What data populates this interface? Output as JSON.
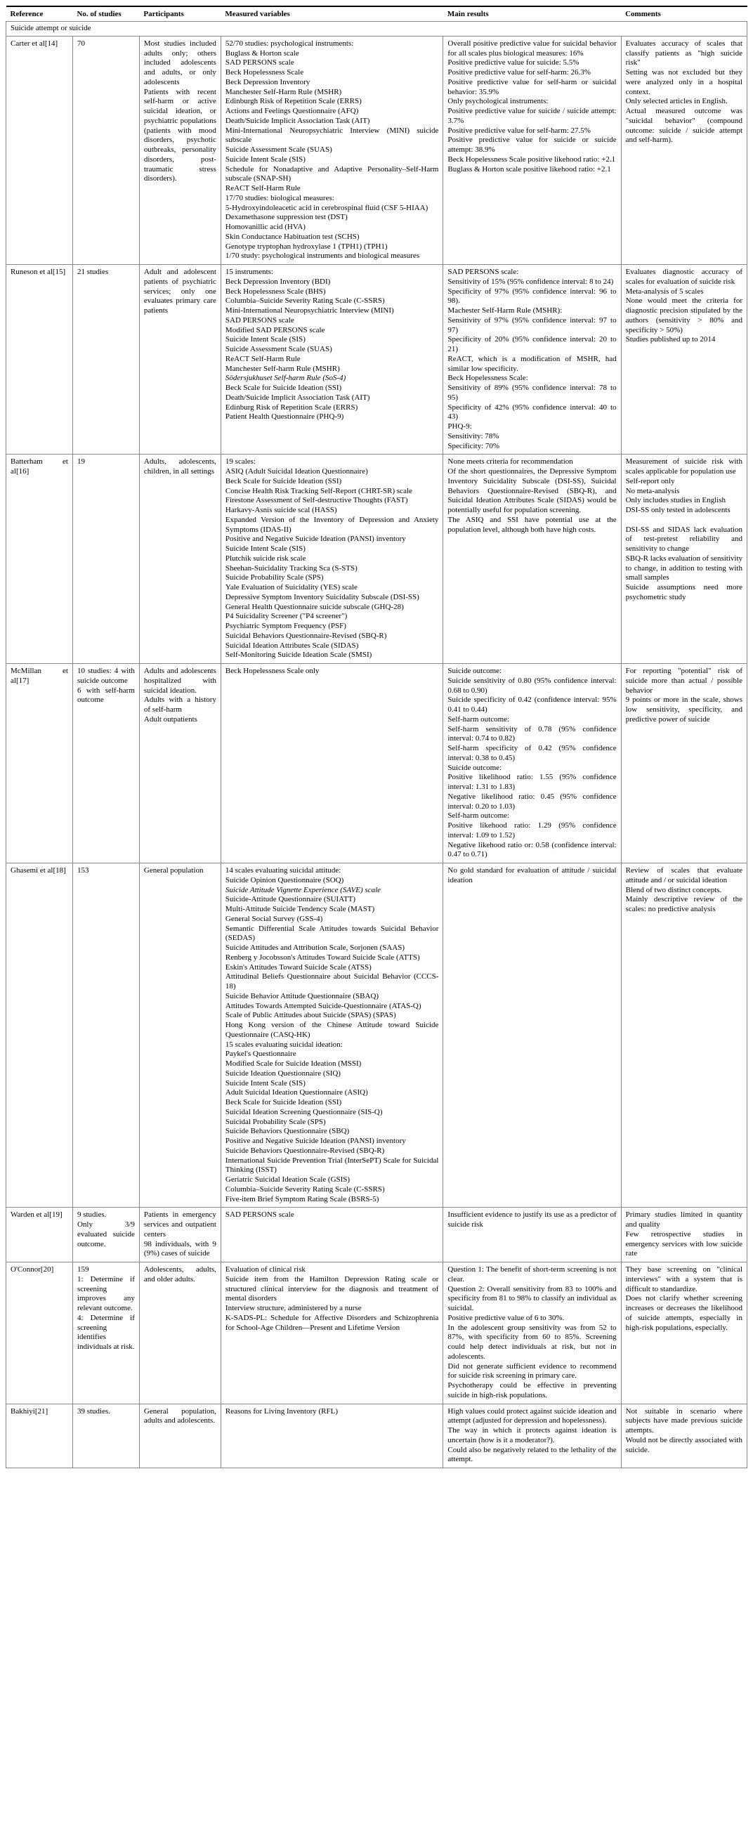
{
  "headers": {
    "reference": "Reference",
    "num_studies": "No. of studies",
    "participants": "Participants",
    "measured": "Measured variables",
    "results": "Main results",
    "comments": "Comments"
  },
  "section_title": "Suicide attempt or suicide",
  "rows": [
    {
      "reference": "Carter et al[14]",
      "num_studies": "70",
      "participants": "Most studies included adults only; others included adolescents and adults, or only adolescents\nPatients with recent self-harm or active suicidal ideation, or psychiatric populations (patients with mood disorders, psychotic outbreaks, personality disorders, post-traumatic stress disorders).",
      "measured": "52/70 studies: psychological instruments:\nBuglass & Horton scale\nSAD PERSONS scale\nBeck Hopelessness Scale\nBeck Depression Inventory\nManchester Self-Harm Rule (MSHR)\nEdinburgh Risk of Repetition Scale (ERRS)\nActions and Feelings Questionnaire (AFQ)\nDeath/Suicide Implicit Association Task (AIT)\nMini-International Neuropsychiatric Interview (MINI) suicide subscale\nSuicide Assessment Scale (SUAS)\nSuicide Intent Scale (SIS)\nSchedule for Nonadaptive and Adaptive Personality–Self-Harm subscale (SNAP-SH)\nReACT Self-Harm Rule\n17/70 studies: biological measures:\n5-Hydroxyindoleacetic acid in cerebrospinal fluid (CSF 5-HIAA)\nDexamethasone suppression test (DST)\nHomovanillic acid (HVA)\nSkin Conductance Habituation test (SCHS)\nGenotype tryptophan hydroxylase 1 (TPH1) (TPH1)\n1/70 study: psychological instruments and biological measures",
      "results": "Overall positive predictive value for suicidal behavior for all scales plus biological measures: 16%\nPositive predictive value for suicide: 5.5%\nPositive predictive value for self-harm: 26.3%\nPositive predictive value for self-harm or suicidal behavior: 35.9%\nOnly psychological instruments:\nPositive predictive value for suicide / suicide attempt: 3.7%\nPositive predictive value for self-harm: 27.5%\nPositive predictive value for suicide or suicide attempt: 38.9%\nBeck Hopelessness Scale positive likehood ratio: +2.1\nBuglass & Horton scale positive likehood ratio: +2.1",
      "comments": "Evaluates accuracy of scales that classify patients as \"high suicide risk\"\nSetting was not excluded but they were analyzed only in a hospital context.\nOnly selected articles in English.\nActual measured outcome was \"suicidal behavior\" (compound outcome: suicide / suicide attempt and self-harm)."
    },
    {
      "reference": "Runeson et al[15]",
      "num_studies": "21 studies",
      "participants": "Adult and adolescent patients of psychiatric services; only one evaluates primary care patients",
      "measured": "15 instruments:\nBeck Depression Inventory (BDI)\nBeck Hopelessness Scale (BHS)\nColumbia–Suicide Severity Rating Scale (C-SSRS)\nMini-International Neuropsychiatric Interview (MINI)\nSAD PERSONS scale\nModified SAD PERSONS scale\nSuicide Intent Scale (SIS)\nSuicide Assessment Scale (SUAS)\nReACT Self-Harm Rule\nManchester Self-harm Rule (MSHR)\nSödersjukhuset Self-harm Rule (SoS-4)\nBeck Scale for Suicide Ideation (SSI)\nDeath/Suicide Implicit Association Task (AIT)\nEdinburg Risk of Repetition Scale (ERRS)\nPatient Health Questionnaire (PHQ-9)",
      "measured_italic": "Södersjukhuset Self-harm Rule (SoS-4)",
      "results": "SAD PERSONS scale:\nSensitivity of 15% (95% confidence interval: 8 to 24)\nSpecificity of 97% (95% confidence interval: 96 to 98).\nMachester Self-Harm Rule (MSHR):\nSensitivity of 97% (95% confidence interval: 97 to 97)\nSpecificity of 20% (95% confidence interval: 20 to 21)\nReACT, which is a modification of MSHR, had similar low specificity.\nBeck Hopelessness Scale:\nSensitivity of 89% (95% confidence interval: 78 to 95)\nSpecificity of 42% (95% confidence interval: 40 to 43)\nPHQ-9:\nSensitivity: 78%\nSpecificity: 70%",
      "comments": "Evaluates diagnostic accuracy of scales for evaluation of suicide risk\nMeta-analysis of 5 scales\nNone would meet the criteria for diagnostic precision stipulated by the authors (sensitivity > 80% and specificity > 50%)\nStudies published up to 2014"
    },
    {
      "reference": "Batterham et al[16]",
      "num_studies": "19",
      "participants": "Adults, adolescents, children, in all settings",
      "measured": "19 scales:\nASIQ (Adult Suicidal Ideation Questionnaire)\nBeck Scale for Suicide Ideation (SSI)\nConcise Health Risk Tracking Self-Report (CHRT-SR) scale\nFirestone Assessment of Self-destructive Thoughts (FAST)\nHarkavy-Asnis suicide scal (HASS)\nExpanded Version of the Inventory of Depression and Anxiety Symptoms (IDAS-II)\nPositive and Negative Suicide Ideation (PANSI) inventory\nSuicide Intent Scale (SIS)\nPlutchik suicide risk scale\nSheehan-Suicidality Tracking Sca (S-STS)\nSuicide Probability Scale (SPS)\nYale Evaluation of Suicidality (YES) scale\nDepressive Symptom Inventory Suicidality Subscale (DSI-SS)\nGeneral Health Questionnaire suicide subscale (GHQ-28)\nP4 Suicidality Screener (\"P4 screener\")\nPsychiatric Symptom Frequency (PSF)\nSuicidal Behaviors Questionnaire-Revised (SBQ-R)\nSuicidal Ideation Attributes Scale (SIDAS)\nSelf-Monitoring Suicide Ideation Scale (SMSI)",
      "results": "None meets criteria for recommendation\nOf the short questionnaires, the Depressive Symptom Inventory Suicidality Subscale (DSI-SS), Suicidal Behaviors Questionnaire-Revised (SBQ-R), and Suicidal Ideation Attributes Scale (SIDAS) would be potentially useful for population screening.\nThe ASIQ and SSI have potential use at the population level, although both have high costs.",
      "comments": "Measurement of suicide risk with scales applicable for population use\nSelf-report only\nNo meta-analysis\nOnly includes studies in English\nDSI-SS only tested in adolescents\n\nDSI-SS and SIDAS lack evaluation of test-pretest reliability and sensitivity to change\nSBQ-R lacks evaluation of sensitivity to change, in addition to testing with small samples\nSuicide assumptions need more psychometric study"
    },
    {
      "reference": "McMillan et al[17]",
      "num_studies": "10 studies: 4 with suicide outcome\n6 with self-harm outcome",
      "participants": "Adults and adolescents hospitalized with suicidal ideation.\nAdults with a history of self-harm\nAdult outpatients",
      "measured": "Beck Hopelessness Scale only",
      "results": "Suicide outcome:\nSuicide sensitivity of 0.80 (95% confidence interval: 0.68 to 0.90)\nSuicide specificity of 0.42 (confidence interval: 95% 0.41 to 0.44)\nSelf-harm outcome:\nSelf-harm sensitivity of 0.78 (95% confidence interval: 0.74 to 0.82)\nSelf-harm specificity of 0.42 (95% confidence interval: 0.38 to 0.45)\nSuicide outcome:\nPositive likelihood ratio: 1.55 (95% confidence interval: 1.31 to 1.83)\nNegative likelihood ratio: 0.45 (95% confidence interval: 0.20 to 1.03)\nSelf-harm outcome:\nPositive likehood ratio: 1.29 (95% confidence interval: 1.09 to 1.52)\nNegative likehood ratio or: 0.58 (confidence interval: 0.47 to 0.71)",
      "comments": "For reporting \"potential\" risk of suicide more than actual / possible behavior\n9 points or more in the scale, shows low sensitivity, specificity, and predictive power of suicide"
    },
    {
      "reference": "Ghasemi et al[18]",
      "num_studies": "153",
      "participants": "General population",
      "measured": "14 scales evaluating suicidal attitude:\nSuicide Opinion Questionnaire (SOQ)\nSuicide Attitude Vignette Experience (SAVE) scale\nSuicide-Attitude Questionnaire (SUIATT)\nMulti-Attitude Suicide Tendency Scale (MAST)\nGeneral Social Survey (GSS-4)\nSemantic Differential Scale Attitudes towards Suicidal Behavior (SEDAS)\nSuicide Attitudes and Attribution Scale, Sorjonen (SAAS)\nRenberg y Jocobsson's Attitudes Toward Suicide Scale  (ATTS)\nEskin's Attitudes Toward Suicide Scale (ATSS)\nAttitudinal Beliefs Questionnaire about Suicidal Behavior (CCCS-18)\nSuicide Behavior Attitude Questionnaire (SBAQ)\nAttitudes Towards Attempted Suicide-Questionnaire (ATAS-Q)\nScale of Public Attitudes about Suicide (SPAS) (SPAS)\nHong Kong version of the Chinese Attitude toward Suicide Questionnaire (CASQ-HK)\n15 scales evaluating suicidal ideation:\nPaykel's Questionnaire\nModified Scale for Suicide Ideation (MSSI)\nSuicide Ideation Questionnaire (SIQ)\nSuicide Intent Scale (SIS)\nAdult Suicidal Ideation Questionnaire (ASIQ)\nBeck Scale for Suicide Ideation (SSI)\nSuicidal Ideation Screening Questionnaire (SIS-Q)\nSuicidal Probability Scale (SPS)\nSuicide Behaviors Questionnaire (SBQ)\nPositive and Negative Suicide Ideation (PANSI) inventory\nSuicide Behaviors Questionnaire-Revised (SBQ-R)\nInternational Suicide Prevention Trial (InterSePT) Scale for Suicidal Thinking (ISST)\nGeriatric Suicidal Ideation Scale (GSIS)\nColumbia–Suicide Severity Rating Scale (C-SSRS)\nFive-item Brief Symptom Rating Scale (BSRS-5)",
      "measured_italic": "Suicide Attitude Vignette Experience (SAVE) scale",
      "results": "No gold standard for evaluation of attitude / suicidal ideation",
      "comments": "Review of scales that evaluate attitude and / or suicidal ideation\nBlend of two distinct concepts.\nMainly descriptive review of the scales: no predictive analysis"
    },
    {
      "reference": "Warden et al[19]",
      "num_studies": "9 studies.\nOnly 3/9 evaluated suicide outcome.",
      "participants": "Patients in emergency services and outpatient centers\n98 individuals, with 9 (9%) cases of suicide",
      "measured": "SAD PERSONS scale",
      "results": "Insufficient evidence to justify its use as a predictor of suicide risk",
      "comments": "Primary studies limited in quantity and quality\nFew retrospective studies in emergency services with low suicide rate"
    },
    {
      "reference": "O'Connor[20]",
      "num_studies": "159\n1: Determine if screening improves any relevant outcome.\n4: Determine if screening identifies individuals at risk.",
      "participants": "Adolescents, adults, and older adults.",
      "measured": "Evaluation of clinical risk\nSuicide item from the Hamilton Depression Rating scale or structured clinical interview for the diagnosis and treatment of mental disorders\nInterview structure, administered by a nurse\nK-SADS-PL: Schedule for Affective Disorders and Schizophrenia for School-Age Children—Present and Lifetime Version",
      "results": "Question 1: The benefit of short-term screening is not clear.\nQuestion 2: Overall sensitivity from 83 to 100% and specificity from 81 to 98% to classify an individual as suicidal.\nPositive predictive value of 6 to 30%.\nIn the adolescent group sensitivity was from 52 to 87%, with specificity from 60 to 85%. Screening could help detect individuals at risk, but not in adolescents.\nDid not generate sufficient evidence to recommend for suicide risk screening in primary care.\nPsychotherapy could be effective in preventing suicide in high-risk populations.",
      "comments": "They base screening on \"clinical interviews\" with a system that is difficult to standardize.\nDoes not clarify whether screening increases or decreases the likelihood of suicide attempts, especially in high-risk populations, especially."
    },
    {
      "reference": "Bakhiyi[21]",
      "num_studies": "39 studies.",
      "participants": "General population, adults and adolescents.",
      "measured": "Reasons for Living Inventory (RFL)",
      "results": "High values could protect against suicide ideation and attempt (adjusted for depression and hopelessness).\nThe way in which it protects against ideation is uncertain (how is it a moderator?).\nCould also be negatively related to the lethality of the attempt.",
      "comments": "Not suitable in scenario where subjects have made previous suicide attempts.\nWould not be directly associated with suicide."
    }
  ]
}
